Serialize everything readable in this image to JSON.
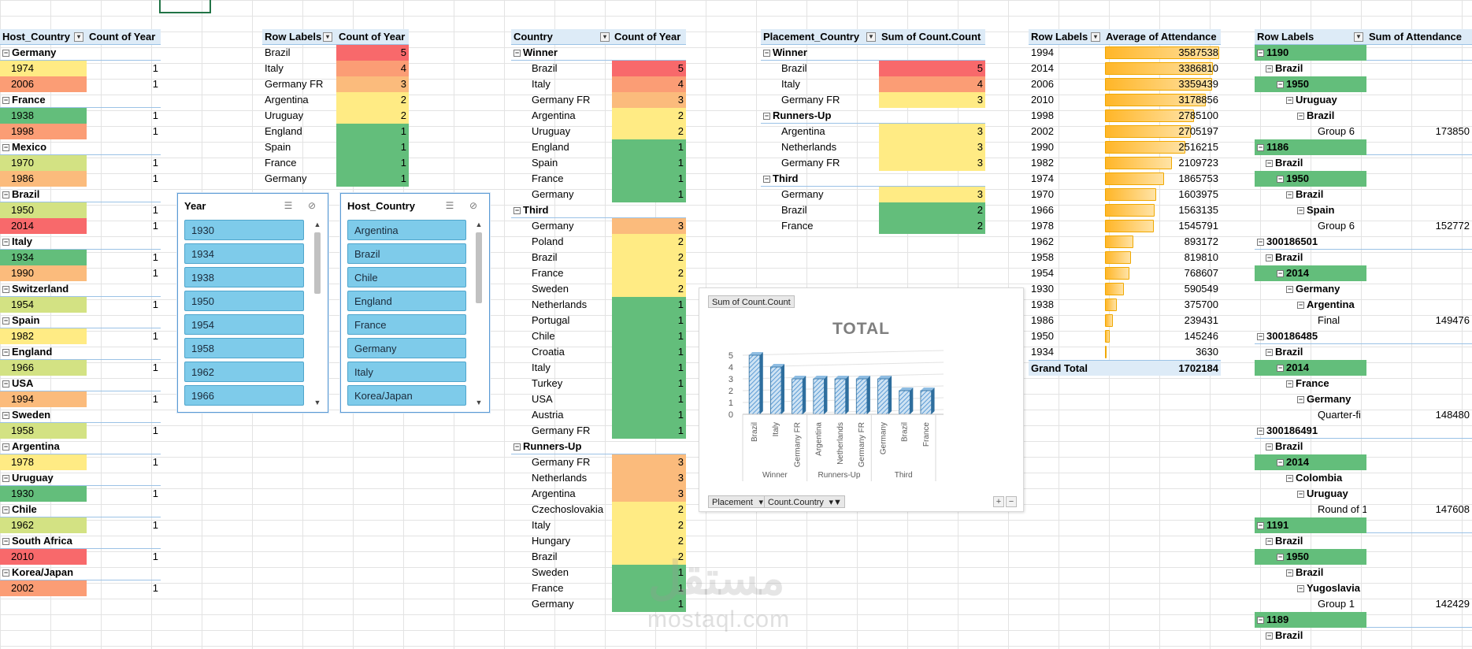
{
  "colors": {
    "red": "#f8696b",
    "orange": "#fb9d75",
    "lightorange": "#fbbb7c",
    "yellow": "#ffeb84",
    "lightgreen": "#d3e283",
    "green": "#63be7b",
    "header": "#ddebf7",
    "band": "#c6e0b4",
    "attendance_bar": "#ffb628",
    "chart_bar": "#5b9bd5"
  },
  "pivot1": {
    "col1": "Host_Country",
    "col2": "Count of Year",
    "rows": [
      {
        "t": "g",
        "label": "Germany"
      },
      {
        "t": "i",
        "label": "1974",
        "count": "1",
        "c": "yellow"
      },
      {
        "t": "i",
        "label": "2006",
        "count": "1",
        "c": "orange"
      },
      {
        "t": "g",
        "label": "France"
      },
      {
        "t": "i",
        "label": "1938",
        "count": "1",
        "c": "green"
      },
      {
        "t": "i",
        "label": "1998",
        "count": "1",
        "c": "orange"
      },
      {
        "t": "g",
        "label": "Mexico"
      },
      {
        "t": "i",
        "label": "1970",
        "count": "1",
        "c": "lightgreen"
      },
      {
        "t": "i",
        "label": "1986",
        "count": "1",
        "c": "lightorange"
      },
      {
        "t": "g",
        "label": "Brazil"
      },
      {
        "t": "i",
        "label": "1950",
        "count": "1",
        "c": "lightgreen"
      },
      {
        "t": "i",
        "label": "2014",
        "count": "1",
        "c": "red"
      },
      {
        "t": "g",
        "label": "Italy"
      },
      {
        "t": "i",
        "label": "1934",
        "count": "1",
        "c": "green"
      },
      {
        "t": "i",
        "label": "1990",
        "count": "1",
        "c": "lightorange"
      },
      {
        "t": "g",
        "label": "Switzerland"
      },
      {
        "t": "i",
        "label": "1954",
        "count": "1",
        "c": "lightgreen"
      },
      {
        "t": "g",
        "label": "Spain"
      },
      {
        "t": "i",
        "label": "1982",
        "count": "1",
        "c": "yellow"
      },
      {
        "t": "g",
        "label": "England"
      },
      {
        "t": "i",
        "label": "1966",
        "count": "1",
        "c": "lightgreen"
      },
      {
        "t": "g",
        "label": "USA"
      },
      {
        "t": "i",
        "label": "1994",
        "count": "1",
        "c": "lightorange"
      },
      {
        "t": "g",
        "label": "Sweden"
      },
      {
        "t": "i",
        "label": "1958",
        "count": "1",
        "c": "lightgreen"
      },
      {
        "t": "g",
        "label": "Argentina"
      },
      {
        "t": "i",
        "label": "1978",
        "count": "1",
        "c": "yellow"
      },
      {
        "t": "g",
        "label": "Uruguay"
      },
      {
        "t": "i",
        "label": "1930",
        "count": "1",
        "c": "green"
      },
      {
        "t": "g",
        "label": "Chile"
      },
      {
        "t": "i",
        "label": "1962",
        "count": "1",
        "c": "lightgreen"
      },
      {
        "t": "g",
        "label": "South Africa"
      },
      {
        "t": "i",
        "label": "2010",
        "count": "1",
        "c": "red"
      },
      {
        "t": "g",
        "label": "Korea/Japan"
      },
      {
        "t": "i",
        "label": "2002",
        "count": "1",
        "c": "orange"
      }
    ]
  },
  "pivot2": {
    "col1": "Row Labels",
    "col2": "Count of Year",
    "rows": [
      {
        "label": "Brazil",
        "count": "5",
        "c": "red"
      },
      {
        "label": "Italy",
        "count": "4",
        "c": "orange"
      },
      {
        "label": "Germany FR",
        "count": "3",
        "c": "lightorange"
      },
      {
        "label": "Argentina",
        "count": "2",
        "c": "yellow"
      },
      {
        "label": "Uruguay",
        "count": "2",
        "c": "yellow"
      },
      {
        "label": "England",
        "count": "1",
        "c": "green"
      },
      {
        "label": "Spain",
        "count": "1",
        "c": "green"
      },
      {
        "label": "France",
        "count": "1",
        "c": "green"
      },
      {
        "label": "Germany",
        "count": "1",
        "c": "green"
      }
    ]
  },
  "slicer_year": {
    "title": "Year",
    "items": [
      "1930",
      "1934",
      "1938",
      "1950",
      "1954",
      "1958",
      "1962",
      "1966"
    ]
  },
  "slicer_host": {
    "title": "Host_Country",
    "items": [
      "Argentina",
      "Brazil",
      "Chile",
      "England",
      "France",
      "Germany",
      "Italy",
      "Korea/Japan"
    ]
  },
  "pivot3": {
    "col1": "Country",
    "col2": "Count of Year",
    "rows": [
      {
        "t": "g",
        "label": "Winner"
      },
      {
        "t": "i",
        "label": "Brazil",
        "count": "5",
        "c": "red"
      },
      {
        "t": "i",
        "label": "Italy",
        "count": "4",
        "c": "orange"
      },
      {
        "t": "i",
        "label": "Germany FR",
        "count": "3",
        "c": "lightorange"
      },
      {
        "t": "i",
        "label": "Argentina",
        "count": "2",
        "c": "yellow"
      },
      {
        "t": "i",
        "label": "Uruguay",
        "count": "2",
        "c": "yellow"
      },
      {
        "t": "i",
        "label": "England",
        "count": "1",
        "c": "green"
      },
      {
        "t": "i",
        "label": "Spain",
        "count": "1",
        "c": "green"
      },
      {
        "t": "i",
        "label": "France",
        "count": "1",
        "c": "green"
      },
      {
        "t": "i",
        "label": "Germany",
        "count": "1",
        "c": "green"
      },
      {
        "t": "g",
        "label": "Third"
      },
      {
        "t": "i",
        "label": "Germany",
        "count": "3",
        "c": "lightorange"
      },
      {
        "t": "i",
        "label": "Poland",
        "count": "2",
        "c": "yellow"
      },
      {
        "t": "i",
        "label": "Brazil",
        "count": "2",
        "c": "yellow"
      },
      {
        "t": "i",
        "label": "France",
        "count": "2",
        "c": "yellow"
      },
      {
        "t": "i",
        "label": "Sweden",
        "count": "2",
        "c": "yellow"
      },
      {
        "t": "i",
        "label": "Netherlands",
        "count": "1",
        "c": "green"
      },
      {
        "t": "i",
        "label": "Portugal",
        "count": "1",
        "c": "green"
      },
      {
        "t": "i",
        "label": "Chile",
        "count": "1",
        "c": "green"
      },
      {
        "t": "i",
        "label": "Croatia",
        "count": "1",
        "c": "green"
      },
      {
        "t": "i",
        "label": "Italy",
        "count": "1",
        "c": "green"
      },
      {
        "t": "i",
        "label": "Turkey",
        "count": "1",
        "c": "green"
      },
      {
        "t": "i",
        "label": "USA",
        "count": "1",
        "c": "green"
      },
      {
        "t": "i",
        "label": "Austria",
        "count": "1",
        "c": "green"
      },
      {
        "t": "i",
        "label": "Germany FR",
        "count": "1",
        "c": "green"
      },
      {
        "t": "g",
        "label": "Runners-Up"
      },
      {
        "t": "i",
        "label": "Germany FR",
        "count": "3",
        "c": "lightorange"
      },
      {
        "t": "i",
        "label": "Netherlands",
        "count": "3",
        "c": "lightorange"
      },
      {
        "t": "i",
        "label": "Argentina",
        "count": "3",
        "c": "lightorange"
      },
      {
        "t": "i",
        "label": "Czechoslovakia",
        "count": "2",
        "c": "yellow"
      },
      {
        "t": "i",
        "label": "Italy",
        "count": "2",
        "c": "yellow"
      },
      {
        "t": "i",
        "label": "Hungary",
        "count": "2",
        "c": "yellow"
      },
      {
        "t": "i",
        "label": "Brazil",
        "count": "2",
        "c": "yellow"
      },
      {
        "t": "i",
        "label": "Sweden",
        "count": "1",
        "c": "green"
      },
      {
        "t": "i",
        "label": "France",
        "count": "1",
        "c": "green"
      },
      {
        "t": "i",
        "label": "Germany",
        "count": "1",
        "c": "green"
      }
    ]
  },
  "pivot4": {
    "col1": "Placement_Country",
    "col2": "Sum of Count.Count",
    "rows": [
      {
        "t": "g",
        "label": "Winner"
      },
      {
        "t": "i",
        "label": "Brazil",
        "count": "5",
        "c": "red"
      },
      {
        "t": "i",
        "label": "Italy",
        "count": "4",
        "c": "orange"
      },
      {
        "t": "i",
        "label": "Germany FR",
        "count": "3",
        "c": "yellow"
      },
      {
        "t": "g",
        "label": "Runners-Up"
      },
      {
        "t": "i",
        "label": "Argentina",
        "count": "3",
        "c": "yellow"
      },
      {
        "t": "i",
        "label": "Netherlands",
        "count": "3",
        "c": "yellow"
      },
      {
        "t": "i",
        "label": "Germany FR",
        "count": "3",
        "c": "yellow"
      },
      {
        "t": "g",
        "label": "Third"
      },
      {
        "t": "i",
        "label": "Germany",
        "count": "3",
        "c": "yellow"
      },
      {
        "t": "i",
        "label": "Brazil",
        "count": "2",
        "c": "green"
      },
      {
        "t": "i",
        "label": "France",
        "count": "2",
        "c": "green"
      }
    ]
  },
  "chart": {
    "field_label": "Sum of Count.Count",
    "title": "TOTAL",
    "filter_placement": "Placement",
    "filter_country": "Count.Country",
    "plus": "+",
    "minus": "−"
  },
  "chart_data": {
    "type": "bar",
    "title": "TOTAL",
    "categories": [
      "Brazil",
      "Italy",
      "Germany FR",
      "Argentina",
      "Netherlands",
      "Germany FR",
      "Germany",
      "Brazil",
      "France"
    ],
    "groups": [
      {
        "name": "Winner",
        "span": 3
      },
      {
        "name": "Runners-Up",
        "span": 3
      },
      {
        "name": "Third",
        "span": 3
      }
    ],
    "series": [
      {
        "values": [
          5,
          4,
          3,
          3,
          3,
          3,
          3,
          2,
          2
        ]
      }
    ],
    "ylim": [
      0,
      5
    ],
    "yticks": [
      0,
      1,
      2,
      3,
      4,
      5
    ],
    "grid": true
  },
  "pivot5": {
    "col1": "Row Labels",
    "col2": "Average of Attendance",
    "max": 3587538,
    "rows": [
      {
        "label": "1994",
        "value": 3587538,
        "text": "3587538"
      },
      {
        "label": "2014",
        "value": 3386810,
        "text": "3386810"
      },
      {
        "label": "2006",
        "value": 3359439,
        "text": "3359439"
      },
      {
        "label": "2010",
        "value": 3178856,
        "text": "3178856"
      },
      {
        "label": "1998",
        "value": 2785100,
        "text": "2785100"
      },
      {
        "label": "2002",
        "value": 2705197,
        "text": "2705197"
      },
      {
        "label": "1990",
        "value": 2516215,
        "text": "2516215"
      },
      {
        "label": "1982",
        "value": 2109723,
        "text": "2109723"
      },
      {
        "label": "1974",
        "value": 1865753,
        "text": "1865753"
      },
      {
        "label": "1970",
        "value": 1603975,
        "text": "1603975"
      },
      {
        "label": "1966",
        "value": 1563135,
        "text": "1563135"
      },
      {
        "label": "1978",
        "value": 1545791,
        "text": "1545791"
      },
      {
        "label": "1962",
        "value": 893172,
        "text": "893172"
      },
      {
        "label": "1958",
        "value": 819810,
        "text": "819810"
      },
      {
        "label": "1954",
        "value": 768607,
        "text": "768607"
      },
      {
        "label": "1930",
        "value": 590549,
        "text": "590549"
      },
      {
        "label": "1938",
        "value": 375700,
        "text": "375700"
      },
      {
        "label": "1986",
        "value": 239431,
        "text": "239431"
      },
      {
        "label": "1950",
        "value": 145246,
        "text": "145246"
      },
      {
        "label": "1934",
        "value": 3630,
        "text": "3630"
      }
    ],
    "total_label": "Grand Total",
    "total_value": "1702184"
  },
  "pivot6": {
    "col1": "Row Labels",
    "col2": "Sum of Attendance",
    "rows": [
      {
        "lvl": 0,
        "label": "1190",
        "band": true
      },
      {
        "lvl": 1,
        "label": "Brazil"
      },
      {
        "lvl": 2,
        "label": "1950",
        "band": true
      },
      {
        "lvl": 3,
        "label": "Uruguay"
      },
      {
        "lvl": 4,
        "label": "Brazil"
      },
      {
        "lvl": 5,
        "label": "Group 6",
        "value": "173850"
      },
      {
        "lvl": 0,
        "label": "1186",
        "band": true
      },
      {
        "lvl": 1,
        "label": "Brazil"
      },
      {
        "lvl": 2,
        "label": "1950",
        "band": true
      },
      {
        "lvl": 3,
        "label": "Brazil"
      },
      {
        "lvl": 4,
        "label": "Spain"
      },
      {
        "lvl": 5,
        "label": "Group 6",
        "value": "152772"
      },
      {
        "lvl": 0,
        "label": "300186501"
      },
      {
        "lvl": 1,
        "label": "Brazil"
      },
      {
        "lvl": 2,
        "label": "2014",
        "band": true
      },
      {
        "lvl": 3,
        "label": "Germany"
      },
      {
        "lvl": 4,
        "label": "Argentina"
      },
      {
        "lvl": 5,
        "label": "Final",
        "value": "149476"
      },
      {
        "lvl": 0,
        "label": "300186485"
      },
      {
        "lvl": 1,
        "label": "Brazil"
      },
      {
        "lvl": 2,
        "label": "2014",
        "band": true
      },
      {
        "lvl": 3,
        "label": "France"
      },
      {
        "lvl": 4,
        "label": "Germany"
      },
      {
        "lvl": 5,
        "label": "Quarter-fi",
        "value": "148480"
      },
      {
        "lvl": 0,
        "label": "300186491"
      },
      {
        "lvl": 1,
        "label": "Brazil"
      },
      {
        "lvl": 2,
        "label": "2014",
        "band": true
      },
      {
        "lvl": 3,
        "label": "Colombia"
      },
      {
        "lvl": 4,
        "label": "Uruguay"
      },
      {
        "lvl": 5,
        "label": "Round of 1",
        "value": "147608"
      },
      {
        "lvl": 0,
        "label": "1191",
        "band": true
      },
      {
        "lvl": 1,
        "label": "Brazil"
      },
      {
        "lvl": 2,
        "label": "1950",
        "band": true
      },
      {
        "lvl": 3,
        "label": "Brazil"
      },
      {
        "lvl": 4,
        "label": "Yugoslavia"
      },
      {
        "lvl": 5,
        "label": "Group 1",
        "value": "142429"
      },
      {
        "lvl": 0,
        "label": "1189",
        "band": true
      },
      {
        "lvl": 1,
        "label": "Brazil"
      }
    ]
  },
  "watermark": {
    "arabic": "مستقل",
    "latin": "mostaql.com"
  }
}
